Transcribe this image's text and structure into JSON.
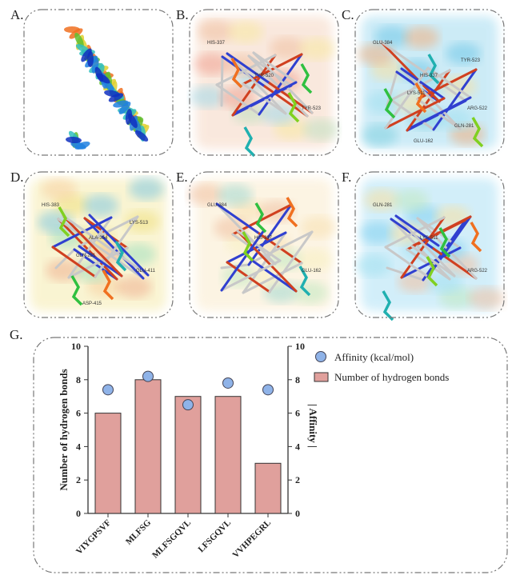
{
  "panels": [
    {
      "label": "A.",
      "residues": []
    },
    {
      "label": "B.",
      "residues": [
        "HIS-337",
        "TYR-520",
        "TYR-523"
      ]
    },
    {
      "label": "C.",
      "residues": [
        "GLU-384",
        "HIS-337",
        "ARG-522",
        "GLU-162",
        "TYR-523",
        "LYS-511",
        "GLN-281"
      ]
    },
    {
      "label": "D.",
      "residues": [
        "HIS-383",
        "ALA-354",
        "GLU-411",
        "ASP-415",
        "LYS-513",
        "GLN-281"
      ]
    },
    {
      "label": "E.",
      "residues": [
        "GLU-384",
        "HIS-337",
        "GLU-162"
      ]
    },
    {
      "label": "F.",
      "residues": [
        "GLN-281",
        "LYS-511",
        "ARG-522"
      ]
    }
  ],
  "chart_label": "G.",
  "chart_data": {
    "type": "bar",
    "categories": [
      "VIYGPSVF",
      "MLFSG",
      "MLFSGQVL",
      "LFSGQVL",
      "VVHPEGRL"
    ],
    "series": [
      {
        "name": "Number of hydrogen bonds",
        "kind": "bar",
        "axis": "left",
        "values": [
          6,
          8,
          7,
          7,
          3
        ],
        "color": "#e0a09c"
      },
      {
        "name": "Affinity (kcal/mol)",
        "kind": "scatter",
        "axis": "right",
        "values": [
          7.4,
          8.2,
          6.5,
          7.8,
          7.4
        ],
        "color": "#8fb3e8"
      }
    ],
    "ylabel": "Number of hydrogen bonds",
    "y2label": "| Affinity |",
    "ylim": [
      0,
      10
    ],
    "y2lim": [
      0,
      10
    ],
    "yticks": [
      "0",
      "2",
      "4",
      "6",
      "8",
      "10"
    ],
    "legend_position": "top-right",
    "grid": false
  }
}
